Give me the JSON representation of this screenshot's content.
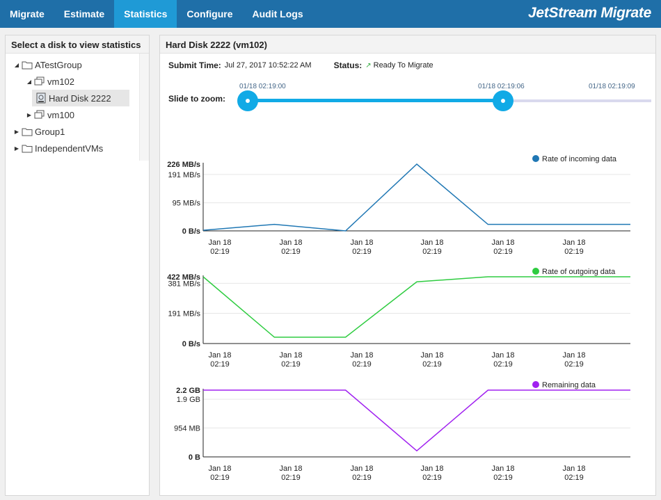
{
  "nav": {
    "tabs": [
      "Migrate",
      "Estimate",
      "Statistics",
      "Configure",
      "Audit Logs"
    ],
    "active": "Statistics",
    "brand": "JetStream Migrate"
  },
  "sidebar": {
    "title": "Select a disk to view statistics",
    "tree": [
      {
        "label": "ATestGroup",
        "level": 0,
        "expanded": true,
        "icon": "folder-icon"
      },
      {
        "label": "vm102",
        "level": 1,
        "expanded": true,
        "icon": "vm-icon"
      },
      {
        "label": "Hard Disk 2222",
        "level": 2,
        "selected": true,
        "icon": "disk-icon"
      },
      {
        "label": "vm100",
        "level": 1,
        "expanded": false,
        "icon": "vm-icon"
      },
      {
        "label": "Group1",
        "level": 0,
        "expanded": false,
        "icon": "folder-icon"
      },
      {
        "label": "IndependentVMs",
        "level": 0,
        "expanded": false,
        "icon": "folder-icon"
      }
    ]
  },
  "main": {
    "title": "Hard Disk 2222 (vm102)",
    "submit_label": "Submit Time:",
    "submit_value": "Jul 27, 2017 10:52:22 AM",
    "status_label": "Status:",
    "status_value": "Ready To Migrate",
    "zoom_label": "Slide to zoom:",
    "zoom": {
      "start": "01/18 02:19:00",
      "handle": "01/18 02:19:06",
      "end": "01/18 02:19:09",
      "selected_fraction": [
        0,
        0.65
      ]
    }
  },
  "colors": {
    "nav": "#1f6fa8",
    "nav_active": "#1f9ad6",
    "slider": "#11aae6",
    "incoming": "#1f77b4",
    "outgoing": "#2ecc40",
    "remaining": "#a020f0"
  },
  "chart_data": [
    {
      "type": "line",
      "legend": "Rate of incoming data",
      "ylabel_ticks": [
        "226 MB/s",
        "191 MB/s",
        "95 MB/s",
        "0 B/s"
      ],
      "ytick_values": [
        226,
        191,
        95,
        0
      ],
      "ylim": [
        0,
        226
      ],
      "x_labels": [
        "Jan 18\n02:19",
        "Jan 18\n02:19",
        "Jan 18\n02:19",
        "Jan 18\n02:19",
        "Jan 18\n02:19",
        "Jan 18\n02:19"
      ],
      "x": [
        0,
        1,
        2,
        3,
        4,
        5,
        6
      ],
      "values": [
        2,
        22,
        0,
        226,
        22,
        22,
        22
      ],
      "color": "#1f77b4"
    },
    {
      "type": "line",
      "legend": "Rate of outgoing data",
      "ylabel_ticks": [
        "422 MB/s",
        "381 MB/s",
        "191 MB/s",
        "0 B/s"
      ],
      "ytick_values": [
        422,
        381,
        191,
        0
      ],
      "ylim": [
        0,
        422
      ],
      "x_labels": [
        "Jan 18\n02:19",
        "Jan 18\n02:19",
        "Jan 18\n02:19",
        "Jan 18\n02:19",
        "Jan 18\n02:19",
        "Jan 18\n02:19"
      ],
      "x": [
        0,
        1,
        2,
        3,
        4,
        5,
        6
      ],
      "values": [
        422,
        40,
        40,
        390,
        422,
        422,
        422
      ],
      "color": "#2ecc40"
    },
    {
      "type": "line",
      "legend": "Remaining data",
      "ylabel_ticks": [
        "2.2 GB",
        "1.9 GB",
        "954 MB",
        "0 B"
      ],
      "ytick_values": [
        2.2,
        1.9,
        0.954,
        0
      ],
      "ylim": [
        0,
        2.2
      ],
      "x_labels": [
        "Jan 18\n02:19",
        "Jan 18\n02:19",
        "Jan 18\n02:19",
        "Jan 18\n02:19",
        "Jan 18\n02:19",
        "Jan 18\n02:19"
      ],
      "x": [
        0,
        1,
        2,
        3,
        4,
        5,
        6
      ],
      "values": [
        2.2,
        2.2,
        2.2,
        0.2,
        2.2,
        2.2,
        2.2
      ],
      "color": "#a020f0"
    }
  ]
}
